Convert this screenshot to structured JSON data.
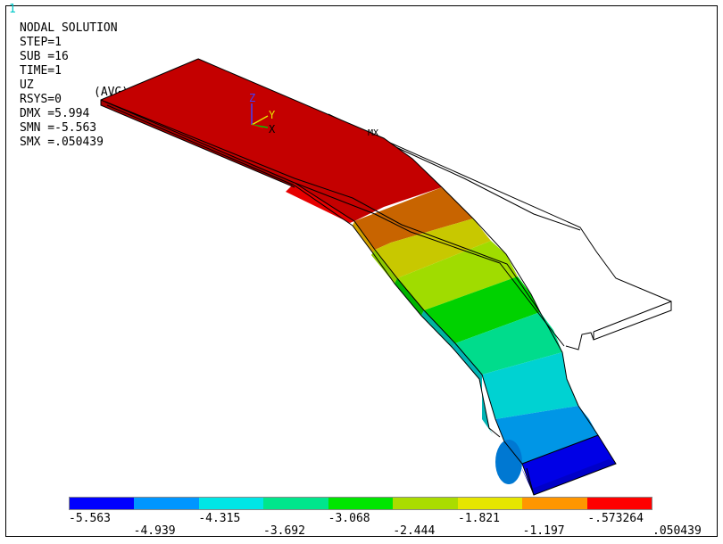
{
  "window_number": "1",
  "solution": {
    "title": "NODAL SOLUTION",
    "lines": [
      "STEP=1",
      "SUB =16",
      "TIME=1",
      "UZ",
      "RSYS=0",
      "DMX =5.994",
      "SMN =-5.563",
      "SMX =.050439"
    ],
    "avg": "(AVG)"
  },
  "triad": {
    "z": "Z",
    "y": "Y",
    "x": "X"
  },
  "legend": {
    "colors": [
      "#0000ff",
      "#0096ff",
      "#00e6e6",
      "#00e68c",
      "#00e600",
      "#aadc00",
      "#e6e600",
      "#ff9600",
      "#ff0000"
    ],
    "upper_labels": [
      "-5.563",
      "-4.315",
      "-3.068",
      "-1.821",
      "-.573264"
    ],
    "lower_labels": [
      "-4.939",
      "-3.692",
      "-2.444",
      "-1.197",
      ".050439"
    ]
  }
}
